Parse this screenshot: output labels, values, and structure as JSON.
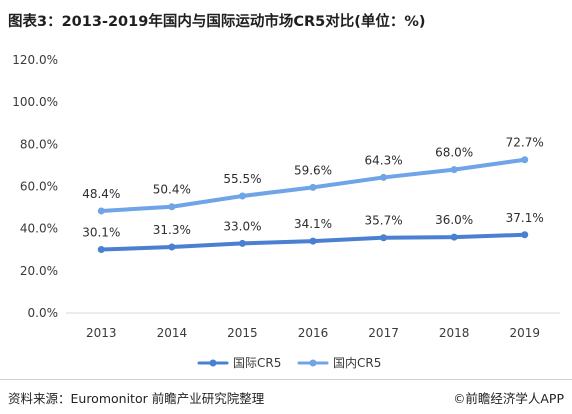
{
  "title": "图表3：2013-2019年国内与国际运动市场CR5对比(单位：%)",
  "footer": {
    "source": "资料来源：Euromonitor 前瞻产业研究院整理",
    "credit": "前瞻经济学人APP",
    "credit_icon": "copyright-mark"
  },
  "colors": {
    "series_intl": "#4a7fd1",
    "series_dom": "#6fa4e6",
    "grid": "#d9d9d9",
    "axis_text": "#3a3a3a"
  },
  "chart_data": {
    "type": "line",
    "title": "",
    "xlabel": "",
    "ylabel": "",
    "categories": [
      "2013",
      "2014",
      "2015",
      "2016",
      "2017",
      "2018",
      "2019"
    ],
    "y_ticks": [
      "0.0%",
      "20.0%",
      "40.0%",
      "60.0%",
      "80.0%",
      "100.0%",
      "120.0%"
    ],
    "ylim": [
      0,
      120
    ],
    "grid": false,
    "legend_position": "bottom-center",
    "series": [
      {
        "name": "国际CR5",
        "values": [
          30.1,
          31.3,
          33.0,
          34.1,
          35.7,
          36.0,
          37.1
        ],
        "labels": [
          "30.1%",
          "31.3%",
          "33.0%",
          "34.1%",
          "35.7%",
          "36.0%",
          "37.1%"
        ]
      },
      {
        "name": "国内CR5",
        "values": [
          48.4,
          50.4,
          55.5,
          59.6,
          64.3,
          68.0,
          72.7
        ],
        "labels": [
          "48.4%",
          "50.4%",
          "55.5%",
          "59.6%",
          "64.3%",
          "68.0%",
          "72.7%"
        ]
      }
    ]
  }
}
